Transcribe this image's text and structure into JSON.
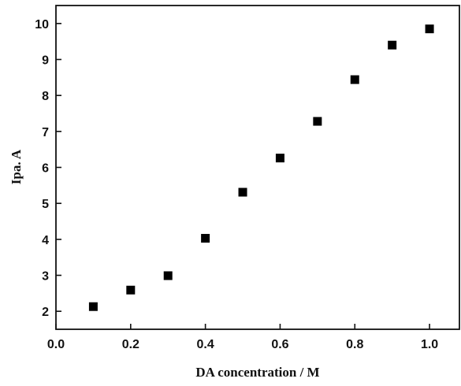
{
  "chart_data": {
    "type": "scatter",
    "title": "",
    "xlabel": "DA concentration / M",
    "ylabel": "Ipa. A",
    "xlim": [
      0.0,
      1.08
    ],
    "ylim": [
      1.5,
      10.5
    ],
    "xticks": [
      0.0,
      0.2,
      0.4,
      0.6,
      0.8,
      1.0
    ],
    "xtick_labels": [
      "0.0",
      "0.2",
      "0.4",
      "0.6",
      "0.8",
      "1.0"
    ],
    "yticks": [
      2,
      3,
      4,
      5,
      6,
      7,
      8,
      9,
      10
    ],
    "ytick_labels": [
      "2",
      "3",
      "4",
      "5",
      "6",
      "7",
      "8",
      "9",
      "10"
    ],
    "grid": false,
    "legend": "none",
    "marker": "filled-square",
    "marker_color": "#000000",
    "series": [
      {
        "x": [
          0.1,
          0.2,
          0.3,
          0.4,
          0.5,
          0.6,
          0.7,
          0.8,
          0.9,
          1.0
        ],
        "y": [
          2.13,
          2.59,
          2.99,
          4.03,
          5.31,
          6.26,
          7.28,
          8.44,
          9.4,
          9.85
        ]
      }
    ]
  }
}
